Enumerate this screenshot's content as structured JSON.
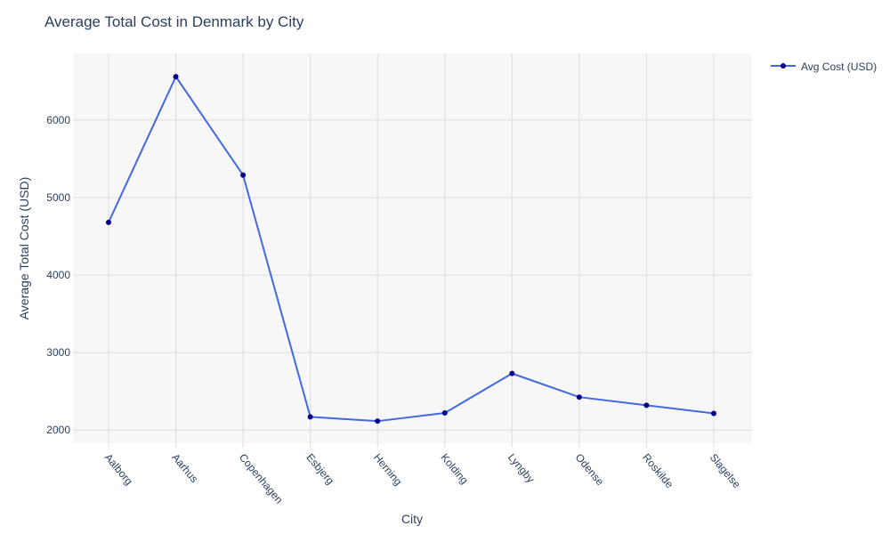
{
  "chart_data": {
    "type": "line",
    "title": "Average Total Cost in Denmark by City",
    "xlabel": "City",
    "ylabel": "Average Total Cost (USD)",
    "categories": [
      "Aalborg",
      "Aarhus",
      "Copenhagen",
      "Esbjerg",
      "Herning",
      "Kolding",
      "Lyngby",
      "Odense",
      "Roskilde",
      "Slagelse"
    ],
    "series": [
      {
        "name": "Avg Cost (USD)",
        "values": [
          4680,
          6560,
          5290,
          2170,
          2115,
          2220,
          2730,
          2425,
          2320,
          2215
        ],
        "line_color": "#4169e1",
        "marker_color": "#00008b"
      }
    ],
    "ylim": [
      1830,
      6860
    ],
    "yticks": [
      2000,
      3000,
      4000,
      5000,
      6000
    ],
    "grid": true,
    "legend_position": "top-right",
    "plot_background": "#f7f7f7",
    "grid_color": "#dcdcdc"
  }
}
